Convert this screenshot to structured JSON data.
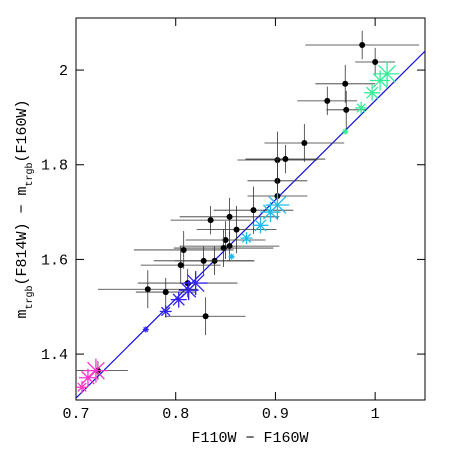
{
  "chart_data": {
    "type": "scatter",
    "xlabel": "F110W − F160W",
    "ylabel": [
      "m",
      "trgb",
      "(F814W) − m",
      "trgb",
      "(F160W)"
    ],
    "xlim": [
      0.7,
      1.05
    ],
    "ylim": [
      1.303,
      2.11
    ],
    "xticks": [
      0.7,
      0.8,
      0.9,
      1
    ],
    "yticks": [
      1.4,
      1.6,
      1.8,
      2
    ],
    "line": {
      "color": "#1010e0",
      "x": [
        0.7,
        1.05
      ],
      "y": [
        1.307,
        2.04
      ]
    },
    "points": {
      "color": "#000000",
      "x": [
        0.987,
        1.0,
        0.97,
        0.952,
        0.971,
        0.929,
        0.902,
        0.91,
        0.902,
        0.902,
        0.878,
        0.854,
        0.835,
        0.861,
        0.85,
        0.854,
        0.848,
        0.839,
        0.828,
        0.808,
        0.805,
        0.772,
        0.79,
        0.812,
        0.83,
        0.722
      ],
      "y": [
        2.053,
        2.017,
        1.971,
        1.935,
        1.916,
        1.846,
        1.81,
        1.812,
        1.766,
        1.734,
        1.704,
        1.69,
        1.683,
        1.663,
        1.641,
        1.628,
        1.624,
        1.597,
        1.597,
        1.62,
        1.588,
        1.537,
        1.531,
        1.55,
        1.48,
        1.365
      ],
      "xerr": [
        0.057,
        0.02,
        0.03,
        0.03,
        0.02,
        0.04,
        0.04,
        0.04,
        0.03,
        0.03,
        0.04,
        0.05,
        0.04,
        0.04,
        0.04,
        0.05,
        0.05,
        0.04,
        0.05,
        0.05,
        0.04,
        0.05,
        0.03,
        0.05,
        0.04,
        0.03
      ],
      "yerr": [
        0.03,
        0.03,
        0.04,
        0.03,
        0.04,
        0.04,
        0.06,
        0.03,
        0.05,
        0.05,
        0.05,
        0.04,
        0.03,
        0.05,
        0.04,
        0.03,
        0.04,
        0.03,
        0.03,
        0.04,
        0.04,
        0.04,
        0.03,
        0.03,
        0.04,
        0.02
      ]
    },
    "stars": [
      {
        "color": "#ff33cc",
        "x": [
          0.706,
          0.712,
          0.72
        ],
        "y": [
          1.33,
          1.35,
          1.365
        ],
        "sizes": [
          6,
          9,
          12
        ]
      },
      {
        "color": "#3322ee",
        "x": [
          0.77,
          0.79,
          0.803,
          0.813,
          0.82
        ],
        "y": [
          1.452,
          1.49,
          1.515,
          1.535,
          1.55
        ],
        "sizes": [
          3,
          6,
          8,
          10,
          12
        ]
      },
      {
        "color": "#22bbee",
        "x": [
          0.856,
          0.871,
          0.885,
          0.895,
          0.902
        ],
        "y": [
          1.606,
          1.645,
          1.672,
          1.7,
          1.715
        ],
        "sizes": [
          3,
          6,
          8,
          10,
          12
        ]
      },
      {
        "color": "#33ee99",
        "x": [
          0.97,
          0.986,
          0.997,
          1.005,
          1.012
        ],
        "y": [
          1.87,
          1.92,
          1.952,
          1.978,
          1.992
        ],
        "sizes": [
          3,
          6,
          8,
          10,
          12
        ]
      }
    ]
  }
}
